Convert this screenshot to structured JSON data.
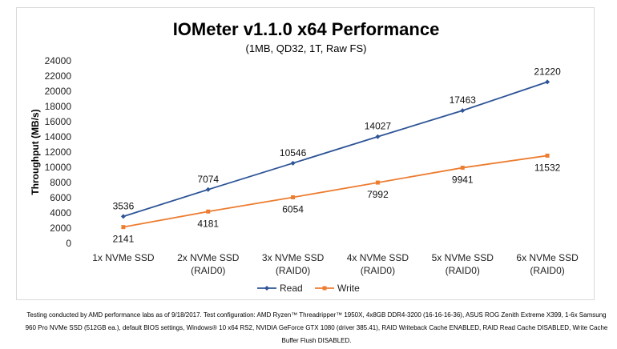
{
  "chart_data": {
    "type": "line",
    "title": "IOMeter v1.1.0 x64 Performance",
    "subtitle": "(1MB, QD32, 1T, Raw FS)",
    "ylabel": "Throughput (MB/s)",
    "xlabel": "",
    "ylim": [
      0,
      24000
    ],
    "yticks": [
      0,
      2000,
      4000,
      6000,
      8000,
      10000,
      12000,
      14000,
      16000,
      18000,
      20000,
      22000,
      24000
    ],
    "categories": [
      [
        "1x NVMe SSD"
      ],
      [
        "2x NVMe SSD",
        "(RAID0)"
      ],
      [
        "3x NVMe SSD",
        "(RAID0)"
      ],
      [
        "4x NVMe SSD",
        "(RAID0)"
      ],
      [
        "5x NVMe SSD",
        "(RAID0)"
      ],
      [
        "6x NVMe SSD",
        "(RAID0)"
      ]
    ],
    "series": [
      {
        "name": "Read",
        "color": "#2e5597",
        "marker": "diamond",
        "label_position": "above",
        "values": [
          3536,
          7074,
          10546,
          14027,
          17463,
          21220
        ]
      },
      {
        "name": "Write",
        "color": "#ed7d31",
        "marker": "square",
        "label_position": "below",
        "values": [
          2141,
          4181,
          6054,
          7992,
          9941,
          11532
        ]
      }
    ],
    "grid": false,
    "legend": "bottom-center"
  },
  "footnote": "Testing conducted by AMD performance labs as of 9/18/2017. Test configuration: AMD Ryzen™ Threadripper™ 1950X, 4x8GB DDR4-3200 (16-16-16-36), ASUS ROG Zenith Extreme X399, 1-6x Samsung 960 Pro NVMe SSD (512GB ea.), default BIOS settings, Windows® 10 x64 RS2, NVIDIA GeForce GTX 1080 (driver 385.41), RAID Writeback Cache ENABLED, RAID Read Cache DISABLED, Write Cache Buffer Flush DISABLED."
}
